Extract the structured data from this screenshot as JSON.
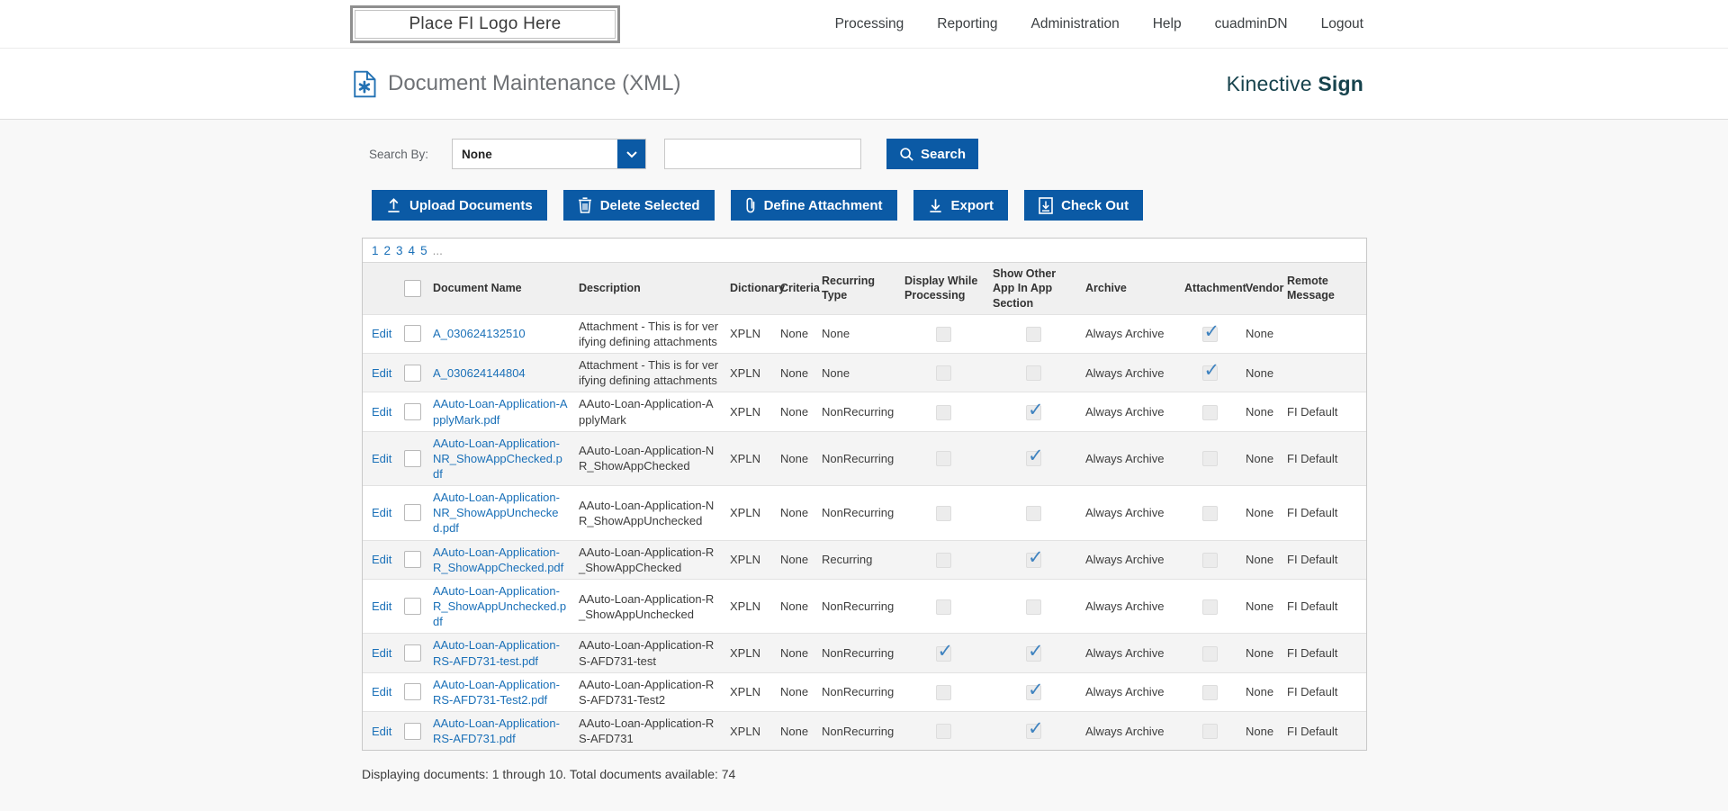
{
  "topbar": {
    "logo_text": "Place FI Logo Here",
    "nav": [
      {
        "label": "Processing"
      },
      {
        "label": "Reporting"
      },
      {
        "label": "Administration"
      },
      {
        "label": "Help"
      },
      {
        "label": "cuadminDN"
      },
      {
        "label": "Logout"
      }
    ]
  },
  "header": {
    "title": "Document Maintenance (XML)",
    "brand_name": "Kinective",
    "brand_suffix": "Sign"
  },
  "search": {
    "label": "Search By:",
    "dropdown_value": "None",
    "input_value": "",
    "button_label": "Search"
  },
  "toolbar": {
    "buttons": [
      {
        "label": "Upload Documents",
        "icon": "upload-icon"
      },
      {
        "label": "Delete Selected",
        "icon": "trash-icon"
      },
      {
        "label": "Define Attachment",
        "icon": "paperclip-icon"
      },
      {
        "label": "Export",
        "icon": "download-icon"
      },
      {
        "label": "Check Out",
        "icon": "checkout-icon"
      }
    ]
  },
  "pagination": {
    "pages": [
      "1",
      "2",
      "3",
      "4",
      "5"
    ],
    "ellipsis": "..."
  },
  "table": {
    "edit_label": "Edit",
    "columns": [
      {
        "key": "edit",
        "label": ""
      },
      {
        "key": "select",
        "label": ""
      },
      {
        "key": "name",
        "label": "Document Name"
      },
      {
        "key": "description",
        "label": "Description"
      },
      {
        "key": "dictionary",
        "label": "Dictionary"
      },
      {
        "key": "criteria",
        "label": "Criteria"
      },
      {
        "key": "recurring_type",
        "label": "Recurring Type"
      },
      {
        "key": "display_while_processing",
        "label": "Display While Processing"
      },
      {
        "key": "show_other_app",
        "label": "Show Other App In App Section"
      },
      {
        "key": "archive",
        "label": "Archive"
      },
      {
        "key": "attachment",
        "label": "Attachment"
      },
      {
        "key": "vendor",
        "label": "Vendor"
      },
      {
        "key": "remote_message",
        "label": "Remote Message"
      }
    ],
    "rows": [
      {
        "name": "A_030624132510",
        "description": "Attachment - This is for verifying defining attachments",
        "dictionary": "XPLN",
        "criteria": "None",
        "recurring_type": "None",
        "display_while_processing": false,
        "show_other_app": false,
        "archive": "Always Archive",
        "attachment": true,
        "vendor": "None",
        "remote_message": ""
      },
      {
        "name": "A_030624144804",
        "description": "Attachment - This is for verifying defining attachments",
        "dictionary": "XPLN",
        "criteria": "None",
        "recurring_type": "None",
        "display_while_processing": false,
        "show_other_app": false,
        "archive": "Always Archive",
        "attachment": true,
        "vendor": "None",
        "remote_message": ""
      },
      {
        "name": "AAuto-Loan-Application-ApplyMark.pdf",
        "description": "AAuto-Loan-Application-ApplyMark",
        "dictionary": "XPLN",
        "criteria": "None",
        "recurring_type": "NonRecurring",
        "display_while_processing": false,
        "show_other_app": true,
        "archive": "Always Archive",
        "attachment": false,
        "vendor": "None",
        "remote_message": "FI Default"
      },
      {
        "name": "AAuto-Loan-Application-NR_ShowAppChecked.pdf",
        "description": "AAuto-Loan-Application-NR_ShowAppChecked",
        "dictionary": "XPLN",
        "criteria": "None",
        "recurring_type": "NonRecurring",
        "display_while_processing": false,
        "show_other_app": true,
        "archive": "Always Archive",
        "attachment": false,
        "vendor": "None",
        "remote_message": "FI Default"
      },
      {
        "name": "AAuto-Loan-Application-NR_ShowAppUnchecked.pdf",
        "description": "AAuto-Loan-Application-NR_ShowAppUnchecked",
        "dictionary": "XPLN",
        "criteria": "None",
        "recurring_type": "NonRecurring",
        "display_while_processing": false,
        "show_other_app": false,
        "archive": "Always Archive",
        "attachment": false,
        "vendor": "None",
        "remote_message": "FI Default"
      },
      {
        "name": "AAuto-Loan-Application-R_ShowAppChecked.pdf",
        "description": "AAuto-Loan-Application-R_ShowAppChecked",
        "dictionary": "XPLN",
        "criteria": "None",
        "recurring_type": "Recurring",
        "display_while_processing": false,
        "show_other_app": true,
        "archive": "Always Archive",
        "attachment": false,
        "vendor": "None",
        "remote_message": "FI Default"
      },
      {
        "name": "AAuto-Loan-Application-R_ShowAppUnchecked.pdf",
        "description": "AAuto-Loan-Application-R_ShowAppUnchecked",
        "dictionary": "XPLN",
        "criteria": "None",
        "recurring_type": "NonRecurring",
        "display_while_processing": false,
        "show_other_app": false,
        "archive": "Always Archive",
        "attachment": false,
        "vendor": "None",
        "remote_message": "FI Default"
      },
      {
        "name": "AAuto-Loan-Application-RS-AFD731-test.pdf",
        "description": "AAuto-Loan-Application-RS-AFD731-test",
        "dictionary": "XPLN",
        "criteria": "None",
        "recurring_type": "NonRecurring",
        "display_while_processing": true,
        "show_other_app": true,
        "archive": "Always Archive",
        "attachment": false,
        "vendor": "None",
        "remote_message": "FI Default"
      },
      {
        "name": "AAuto-Loan-Application-RS-AFD731-Test2.pdf",
        "description": "AAuto-Loan-Application-RS-AFD731-Test2",
        "dictionary": "XPLN",
        "criteria": "None",
        "recurring_type": "NonRecurring",
        "display_while_processing": false,
        "show_other_app": true,
        "archive": "Always Archive",
        "attachment": false,
        "vendor": "None",
        "remote_message": "FI Default"
      },
      {
        "name": "AAuto-Loan-Application-RS-AFD731.pdf",
        "description": "AAuto-Loan-Application-RS-AFD731",
        "dictionary": "XPLN",
        "criteria": "None",
        "recurring_type": "NonRecurring",
        "display_while_processing": false,
        "show_other_app": true,
        "archive": "Always Archive",
        "attachment": false,
        "vendor": "None",
        "remote_message": "FI Default"
      }
    ]
  },
  "footer": {
    "summary": "Displaying documents: 1 through 10. Total documents available: 74"
  },
  "colors": {
    "accent_blue": "#0b5aa5",
    "link_blue": "#1a70b8",
    "check_blue": "#3f83c0",
    "brand_teal": "#17434d"
  }
}
